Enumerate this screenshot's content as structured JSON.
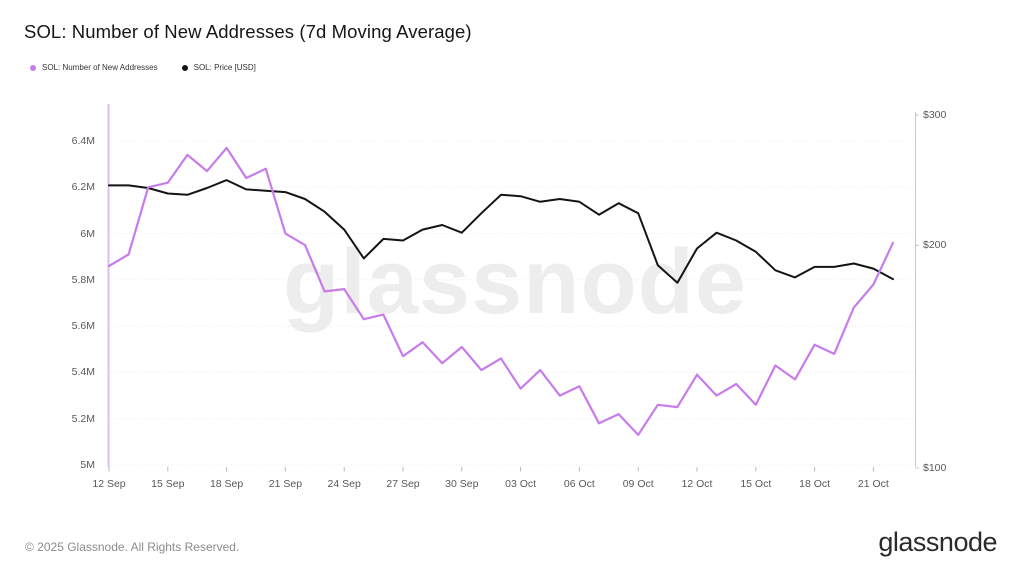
{
  "header": {
    "title": "SOL: Number of New Addresses (7d Moving Average)"
  },
  "legend": {
    "items": [
      {
        "label": "SOL: Number of New Addresses",
        "color": "#c87cea"
      },
      {
        "label": "SOL: Price [USD]",
        "color": "#141414"
      }
    ]
  },
  "watermark": {
    "text": "glassnode"
  },
  "footer": {
    "copyright": "© 2025 Glassnode. All Rights Reserved.",
    "logo_text": "glassnode"
  },
  "chart_data": {
    "type": "line",
    "title": "SOL: Number of New Addresses (7d Moving Average)",
    "legend_position": "top-left",
    "grid": true,
    "x": [
      "12 Sep",
      "13 Sep",
      "14 Sep",
      "15 Sep",
      "16 Sep",
      "17 Sep",
      "18 Sep",
      "19 Sep",
      "20 Sep",
      "21 Sep",
      "22 Sep",
      "23 Sep",
      "24 Sep",
      "25 Sep",
      "26 Sep",
      "27 Sep",
      "28 Sep",
      "29 Sep",
      "30 Sep",
      "01 Oct",
      "02 Oct",
      "03 Oct",
      "04 Oct",
      "05 Oct",
      "06 Oct",
      "07 Oct",
      "08 Oct",
      "09 Oct",
      "10 Oct",
      "11 Oct",
      "12 Oct",
      "13 Oct",
      "14 Oct",
      "15 Oct",
      "16 Oct",
      "17 Oct",
      "18 Oct",
      "19 Oct",
      "20 Oct",
      "21 Oct",
      "22 Oct"
    ],
    "x_ticks": [
      "12 Sep",
      "15 Sep",
      "18 Sep",
      "21 Sep",
      "24 Sep",
      "27 Sep",
      "30 Sep",
      "03 Oct",
      "06 Oct",
      "09 Oct",
      "12 Oct",
      "15 Oct",
      "18 Oct",
      "21 Oct"
    ],
    "x_tick_interval_days": 3,
    "series": [
      {
        "name": "SOL: Number of New Addresses",
        "yaxis": "left",
        "color": "#c87cea",
        "unit": "millions of addresses",
        "values": [
          5.86,
          5.91,
          6.2,
          6.22,
          6.34,
          6.27,
          6.37,
          6.24,
          6.28,
          6.0,
          5.95,
          5.75,
          5.76,
          5.63,
          5.65,
          5.47,
          5.53,
          5.44,
          5.51,
          5.41,
          5.46,
          5.33,
          5.41,
          5.3,
          5.34,
          5.18,
          5.22,
          5.13,
          5.26,
          5.25,
          5.39,
          5.3,
          5.35,
          5.26,
          5.43,
          5.37,
          5.52,
          5.48,
          5.68,
          5.78,
          5.96
        ]
      },
      {
        "name": "SOL: Price [USD]",
        "yaxis": "right",
        "color": "#141414",
        "unit": "USD",
        "values": [
          241,
          241,
          239,
          235,
          234,
          239,
          245,
          238,
          237,
          236,
          231,
          222,
          210,
          192,
          204,
          203,
          210,
          213,
          208,
          221,
          234,
          233,
          229,
          231,
          229,
          220,
          228,
          221,
          188,
          178,
          198,
          208,
          203,
          196,
          185,
          181,
          187,
          187,
          189,
          186,
          180
        ]
      }
    ],
    "left_axis": {
      "scale": "linear",
      "unit": "M",
      "range": [
        5.0,
        6.4
      ],
      "tick_values": [
        6.4,
        6.2,
        6.0,
        5.8,
        5.6,
        5.4,
        5.2,
        5.0
      ],
      "tick_labels": [
        "6.4M",
        "6.2M",
        "6M",
        "5.8M",
        "5.6M",
        "5.4M",
        "5.2M",
        "5M"
      ]
    },
    "right_axis": {
      "scale": "log",
      "unit": "USD",
      "range": [
        100,
        300
      ],
      "tick_values": [
        300,
        200,
        100
      ],
      "tick_labels": [
        "$300",
        "$200",
        "$100"
      ]
    },
    "colors": {
      "grid": "#ececec",
      "left_axis_line": "#ddbdf2",
      "right_axis_line": "#c8c8c8",
      "tick_mark": "#b8b8b8"
    }
  }
}
